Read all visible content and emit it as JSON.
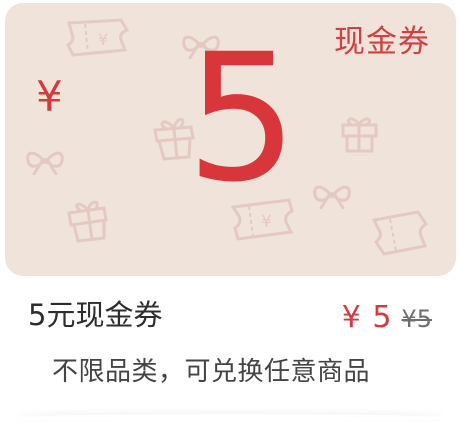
{
  "coupon": {
    "hero_badge": "现金券",
    "currency_symbol": "¥",
    "amount": "5",
    "title": "5元现金券",
    "price_current": "¥ 5",
    "price_original": "¥5",
    "description": "不限品类，可兑换任意商品"
  },
  "colors": {
    "hero_background": "#f0e4da",
    "accent_red": "#d8363b",
    "text_dark": "#2d2d2d",
    "text_gray": "#444444"
  },
  "icons": [
    "ticket-icon",
    "bow-icon",
    "gift-icon"
  ]
}
